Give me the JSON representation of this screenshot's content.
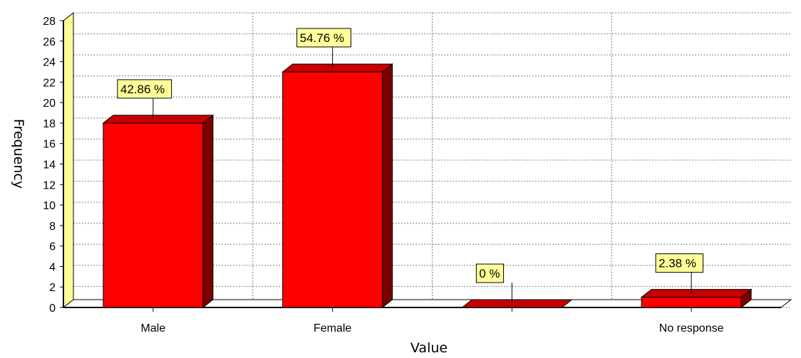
{
  "chart_data": {
    "type": "bar",
    "categories": [
      "Male",
      "Female",
      "",
      "No response"
    ],
    "values": [
      18,
      23,
      0,
      1
    ],
    "data_labels": [
      "42.86 %",
      "54.76 %",
      "0 %",
      "2.38 %"
    ],
    "xlabel": "Value",
    "ylabel": "Frequency",
    "ylim": [
      0,
      28
    ],
    "yticks": [
      0,
      2,
      4,
      6,
      8,
      10,
      12,
      14,
      16,
      18,
      20,
      22,
      24,
      26,
      28
    ],
    "grid": true,
    "three_d": true,
    "colors": {
      "bar_front": "#ff0000",
      "bar_side": "#7a0000",
      "bar_top": "#c80000",
      "back_wall": "#ffff99",
      "label_fill": "#ffff99",
      "grid": "#7f7f7f"
    }
  }
}
